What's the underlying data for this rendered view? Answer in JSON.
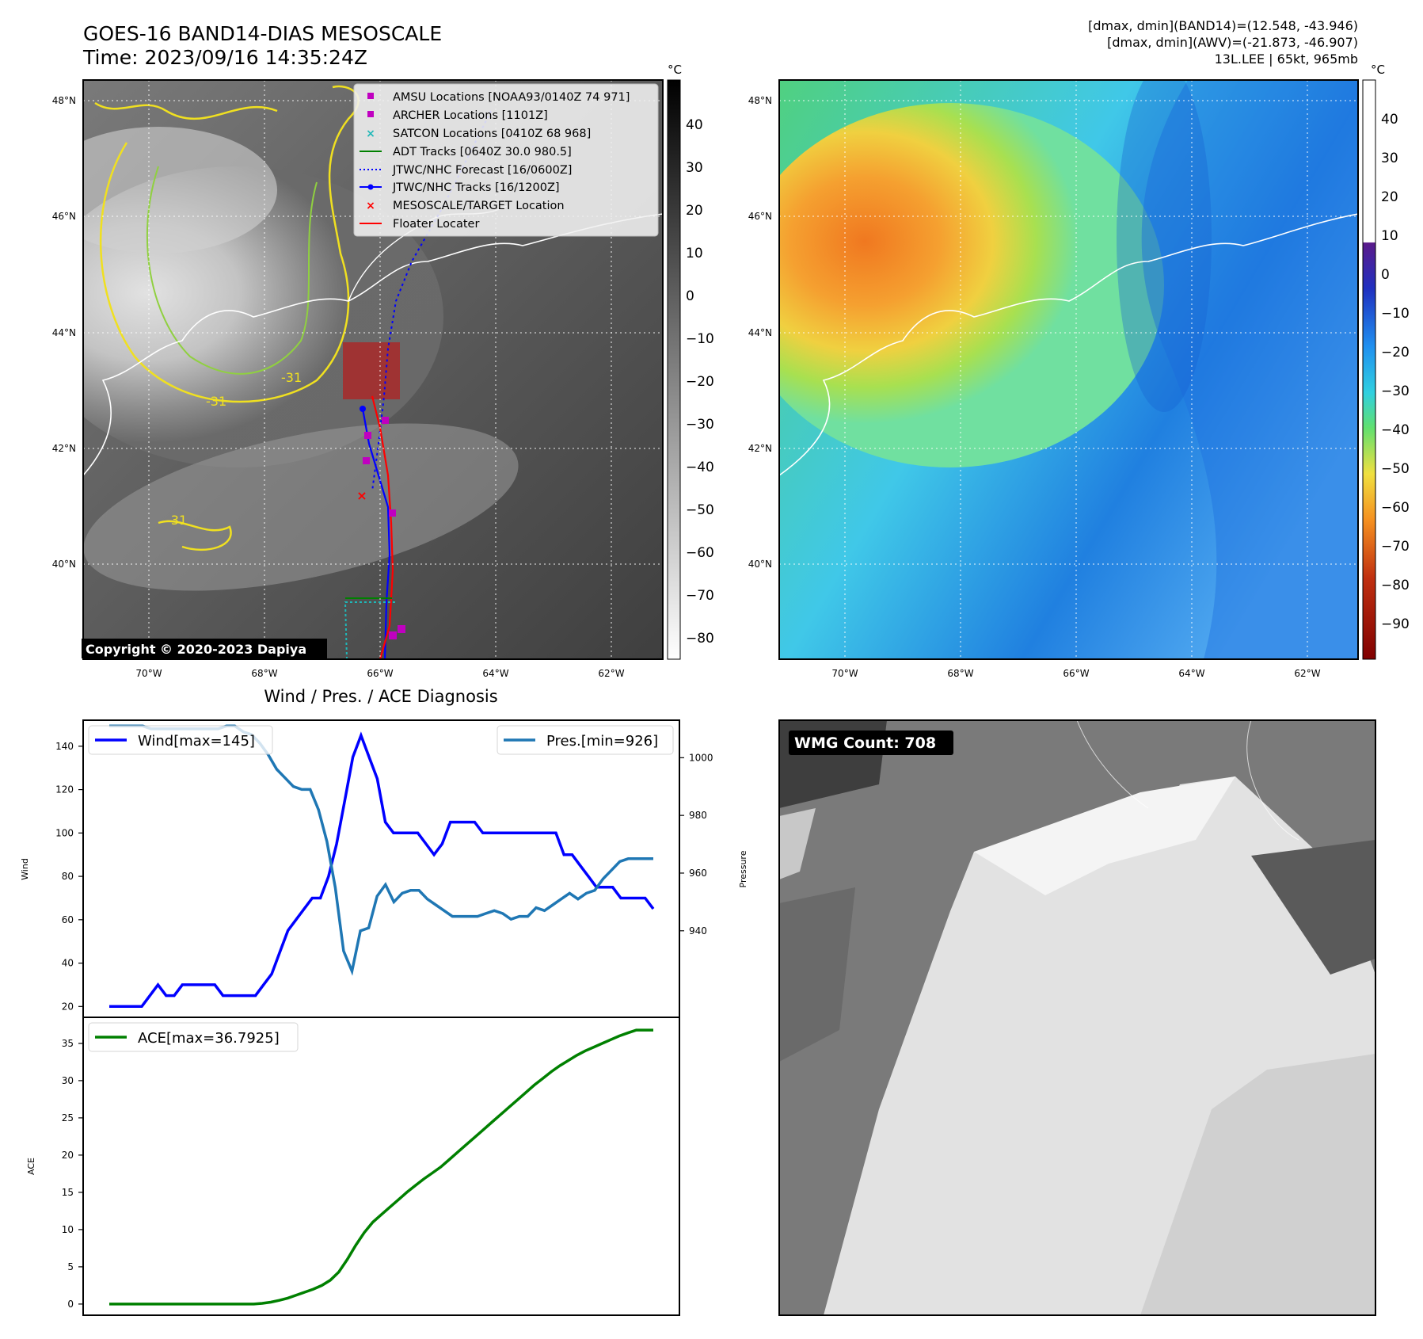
{
  "header": {
    "title_line1": "GOES-16 BAND14-DIAS MESOSCALE",
    "title_line2": "Time: 2023/09/16 14:35:24Z",
    "stats_line1": "[dmax, dmin](BAND14)=(12.548, -43.946)",
    "stats_line2": "[dmax, dmin](AWV)=(-21.873, -46.907)",
    "stats_line3": "13L.LEE | 65kt, 965mb"
  },
  "map_axes": {
    "lat_ticks": [
      "48°N",
      "46°N",
      "44°N",
      "42°N",
      "40°N"
    ],
    "lon_ticks": [
      "70°W",
      "68°W",
      "66°W",
      "64°W",
      "62°W"
    ]
  },
  "ir_panel": {
    "copyright": "Copyright © 2020-2023 Dapiya",
    "contour_labels": [
      "-31",
      "-31",
      "-31"
    ],
    "colorbar_unit": "°C",
    "colorbar_ticks": [
      "40",
      "30",
      "20",
      "10",
      "0",
      "−10",
      "−20",
      "−30",
      "−40",
      "−50",
      "−60",
      "−70",
      "−80"
    ],
    "legend": [
      {
        "label": "AMSU Locations [NOAA93/0140Z 74 971]",
        "marker": "square",
        "color": "#c000c0"
      },
      {
        "label": "ARCHER Locations [1101Z]",
        "marker": "square",
        "color": "#c000c0"
      },
      {
        "label": "SATCON Locations [0410Z 68 968]",
        "marker": "x",
        "color": "#1fb8b8"
      },
      {
        "label": "ADT Tracks [0640Z 30.0 980.5]",
        "marker": "line",
        "color": "#008000"
      },
      {
        "label": "JTWC/NHC Forecast [16/0600Z]",
        "marker": "dotted",
        "color": "#0000ff"
      },
      {
        "label": "JTWC/NHC Tracks [16/1200Z]",
        "marker": "line-dot",
        "color": "#0000ff"
      },
      {
        "label": "MESOSCALE/TARGET Location",
        "marker": "x",
        "color": "#ff0000"
      },
      {
        "label": "Floater Locater",
        "marker": "line",
        "color": "#ff0000"
      }
    ]
  },
  "wv_panel": {
    "colorbar_unit": "°C",
    "colorbar_ticks": [
      "40",
      "30",
      "20",
      "10",
      "0",
      "−10",
      "−20",
      "−30",
      "−40",
      "−50",
      "−60",
      "−70",
      "−80",
      "−90"
    ]
  },
  "wmg_panel": {
    "label": "WMG Count: 708"
  },
  "colors": {
    "wind": "#0000ff",
    "pressure": "#1f77b4",
    "ace": "#008000",
    "map_grid": "#ffffff"
  },
  "chart_data": [
    {
      "type": "line",
      "title": "Wind / Pres. / ACE Diagnosis",
      "xlabel": "",
      "ylabel": "Wind",
      "y2label": "Pressure",
      "ylim": [
        15,
        152
      ],
      "y2lim": [
        910,
        1013
      ],
      "yticks": [
        20,
        40,
        60,
        80,
        100,
        120,
        140
      ],
      "y2ticks": [
        940,
        960,
        980,
        1000
      ],
      "legend_placement": [
        "upper left",
        "upper right"
      ],
      "series": [
        {
          "name": "Wind[max=145]",
          "axis": "left",
          "values": [
            20,
            20,
            20,
            20,
            20,
            25,
            30,
            25,
            25,
            30,
            30,
            30,
            30,
            30,
            25,
            25,
            25,
            25,
            25,
            30,
            35,
            45,
            55,
            60,
            65,
            70,
            70,
            80,
            95,
            115,
            135,
            145,
            135,
            125,
            105,
            100,
            100,
            100,
            100,
            95,
            90,
            95,
            105,
            105,
            105,
            105,
            100,
            100,
            100,
            100,
            100,
            100,
            100,
            100,
            100,
            100,
            90,
            90,
            85,
            80,
            75,
            75,
            75,
            70,
            70,
            70,
            70,
            65
          ]
        },
        {
          "name": "Pres.[min=926]",
          "axis": "right",
          "values": [
            1011,
            1011,
            1011,
            1011,
            1011,
            1010,
            1010,
            1010,
            1010,
            1010,
            1010,
            1010,
            1010,
            1010,
            1011,
            1011,
            1009,
            1008,
            1005,
            1001,
            996,
            993,
            990,
            989,
            989,
            982,
            971,
            955,
            933,
            926,
            940,
            941,
            952,
            956,
            950,
            953,
            954,
            954,
            951,
            949,
            947,
            945,
            945,
            945,
            945,
            946,
            947,
            946,
            944,
            945,
            945,
            948,
            947,
            949,
            951,
            953,
            951,
            953,
            954,
            958,
            961,
            964,
            965,
            965,
            965,
            965
          ]
        }
      ]
    },
    {
      "type": "line",
      "title": "",
      "xlabel": "",
      "ylabel": "ACE",
      "ylim": [
        -1.5,
        38.5
      ],
      "yticks": [
        0,
        5,
        10,
        15,
        20,
        25,
        30,
        35
      ],
      "legend_placement": "upper left",
      "series": [
        {
          "name": "ACE[max=36.7925]",
          "values": [
            0,
            0,
            0,
            0,
            0,
            0,
            0,
            0,
            0,
            0,
            0,
            0,
            0,
            0,
            0,
            0,
            0,
            0,
            0.1,
            0.25,
            0.5,
            0.8,
            1.2,
            1.6,
            2.0,
            2.5,
            3.2,
            4.3,
            6.0,
            7.9,
            9.6,
            11.0,
            12.0,
            13.0,
            14.0,
            15.0,
            15.9,
            16.8,
            17.6,
            18.4,
            19.4,
            20.4,
            21.4,
            22.4,
            23.4,
            24.4,
            25.4,
            26.4,
            27.4,
            28.4,
            29.4,
            30.3,
            31.2,
            32.0,
            32.7,
            33.4,
            34.0,
            34.5,
            35.0,
            35.5,
            36.0,
            36.4,
            36.79,
            36.79,
            36.79
          ]
        }
      ]
    }
  ]
}
